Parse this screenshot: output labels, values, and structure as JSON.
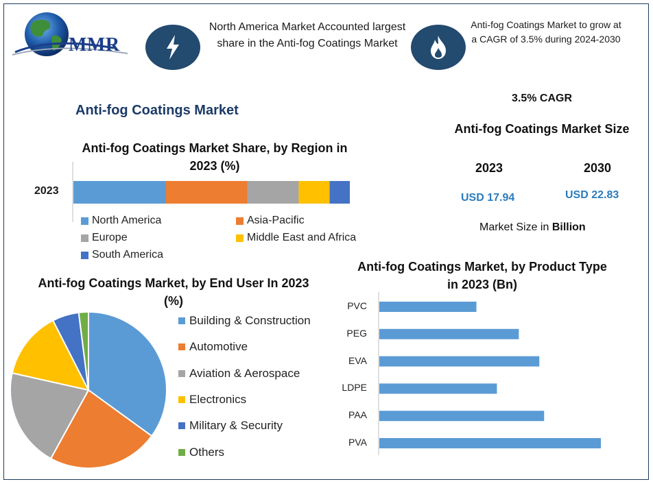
{
  "brand": {
    "name": "MMR",
    "colors": {
      "globe": "#1e5aa8",
      "text": "#1b3e8a"
    }
  },
  "header": {
    "left_icon": "lightning-icon",
    "left_text": "North America Market Accounted largest share in the Anti-fog Coatings Market",
    "right_icon": "flame-icon",
    "right_text": "Anti-fog Coatings Market to grow at a CAGR of 3.5% during 2024-2030"
  },
  "page_title": "Anti-fog Coatings Market",
  "market_size": {
    "cagr": "3.5% CAGR",
    "title": "Anti-fog Coatings Market Size",
    "year_start": "2023",
    "year_end": "2030",
    "value_start": "USD 17.94",
    "value_end": "USD 22.83",
    "unit_prefix": "Market Size in ",
    "unit_bold": "Billion"
  },
  "chart_data": [
    {
      "type": "bar",
      "orientation": "horizontal-stacked",
      "title": "Anti-fog Coatings Market Share, by Region in 2023 (%)",
      "categories": [
        "2023"
      ],
      "series": [
        {
          "name": "North America",
          "values": [
            33.5
          ],
          "color": "#5b9bd5"
        },
        {
          "name": "Asia-Pacific",
          "values": [
            29.5
          ],
          "color": "#ed7d31"
        },
        {
          "name": "Europe",
          "values": [
            18.5
          ],
          "color": "#a5a5a5"
        },
        {
          "name": "Middle East and Africa",
          "values": [
            11.2
          ],
          "color": "#ffc000"
        },
        {
          "name": "South America",
          "values": [
            7.3
          ],
          "color": "#4472c4"
        }
      ],
      "legend": "bottom"
    },
    {
      "type": "pie",
      "title": "Anti-fog Coatings Market, by End User In 2023 (%)",
      "labels": [
        "Building & Construction",
        "Automotive",
        "Aviation & Aerospace",
        "Electronics",
        "Military & Security",
        "Others"
      ],
      "values": [
        35,
        23,
        20.5,
        14,
        5.5,
        2
      ],
      "colors": [
        "#5b9bd5",
        "#ed7d31",
        "#a5a5a5",
        "#ffc000",
        "#4472c4",
        "#70ad47"
      ],
      "legend": "right"
    },
    {
      "type": "bar",
      "orientation": "horizontal",
      "title": "Anti-fog Coatings Market, by Product Type in 2023 (Bn)",
      "categories": [
        "PVC",
        "PEG",
        "EVA",
        "LDPE",
        "PAA",
        "PVA"
      ],
      "values": [
        1.42,
        2.04,
        2.34,
        1.72,
        2.41,
        3.24
      ],
      "color": "#5b9bd5"
    }
  ]
}
